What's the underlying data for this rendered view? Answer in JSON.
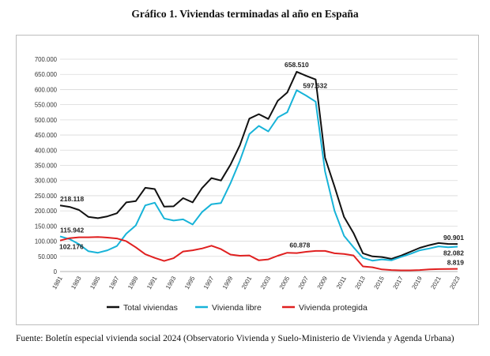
{
  "title": "Gráfico 1. Viviendas terminadas al año en España",
  "source": "Fuente: Boletín especial vivienda social 2024 (Observatorio Vivienda y Suelo-Ministerio de Vivienda y Agenda Urbana)",
  "chart_data": {
    "type": "line",
    "x": [
      1981,
      1982,
      1983,
      1984,
      1985,
      1986,
      1987,
      1988,
      1989,
      1990,
      1991,
      1992,
      1993,
      1994,
      1995,
      1996,
      1997,
      1998,
      1999,
      2000,
      2001,
      2002,
      2003,
      2004,
      2005,
      2006,
      2007,
      2008,
      2009,
      2010,
      2011,
      2012,
      2013,
      2014,
      2015,
      2016,
      2017,
      2018,
      2019,
      2020,
      2021,
      2022,
      2023
    ],
    "x_tick_labels": [
      "1981",
      "1983",
      "1985",
      "1987",
      "1989",
      "1991",
      "1993",
      "1995",
      "1997",
      "1999",
      "2001",
      "2003",
      "2005",
      "2007",
      "2009",
      "2011",
      "2013",
      "2015",
      "2017",
      "2019",
      "2021",
      "2023"
    ],
    "y_tick_labels": [
      "0",
      "50.000",
      "100.000",
      "150.000",
      "200.000",
      "250.000",
      "300.000",
      "350.000",
      "400.000",
      "450.000",
      "500.000",
      "550.000",
      "600.000",
      "650.000",
      "700.000"
    ],
    "ylim": [
      0,
      700000
    ],
    "grid": "horizontal",
    "legend_position": "bottom",
    "series": [
      {
        "name": "Total viviendas",
        "color": "#111111",
        "values": [
          218118,
          213000,
          203000,
          180000,
          176000,
          182000,
          192000,
          228000,
          232000,
          276000,
          272000,
          214000,
          215000,
          242000,
          228000,
          275000,
          308000,
          300000,
          352000,
          416000,
          504000,
          519000,
          503000,
          563000,
          590000,
          658510,
          645000,
          633000,
          375000,
          280000,
          180000,
          127000,
          60000,
          50000,
          48000,
          42000,
          52000,
          65000,
          78000,
          87000,
          94000,
          91000,
          90901
        ]
      },
      {
        "name": "Vivienda libre",
        "color": "#17b3d8",
        "values": [
          115942,
          107000,
          90000,
          67000,
          62000,
          70000,
          84000,
          125000,
          152000,
          218000,
          227000,
          175000,
          168000,
          172000,
          155000,
          196000,
          222000,
          226000,
          291000,
          365000,
          453000,
          480000,
          462000,
          508000,
          525000,
          597632,
          580000,
          560000,
          330000,
          200000,
          118000,
          80000,
          45000,
          36000,
          40000,
          37000,
          48000,
          58000,
          70000,
          76000,
          83000,
          80000,
          82082
        ]
      },
      {
        "name": "Vivienda protegida",
        "color": "#e02020",
        "values": [
          102176,
          110000,
          113000,
          113000,
          114000,
          112000,
          109000,
          100000,
          80000,
          57000,
          45000,
          35000,
          44000,
          66000,
          70000,
          76000,
          85000,
          74000,
          56000,
          52000,
          53000,
          37000,
          40000,
          52000,
          62000,
          60878,
          65000,
          68000,
          68000,
          60000,
          58000,
          53000,
          17000,
          14000,
          7000,
          5000,
          4000,
          4000,
          5000,
          7000,
          8000,
          8500,
          8819
        ]
      }
    ],
    "annotations": [
      {
        "x": 1981,
        "label": "218.118"
      },
      {
        "x": 1981,
        "label": "115.942"
      },
      {
        "x": 1981,
        "label": "102.176"
      },
      {
        "x": 2006,
        "label": "658.510"
      },
      {
        "x": 2006,
        "label": "597.632"
      },
      {
        "x": 2006,
        "label": "60.878"
      },
      {
        "x": 2023,
        "label": "90.901"
      },
      {
        "x": 2023,
        "label": "82.082"
      },
      {
        "x": 2023,
        "label": "8.819"
      }
    ]
  }
}
